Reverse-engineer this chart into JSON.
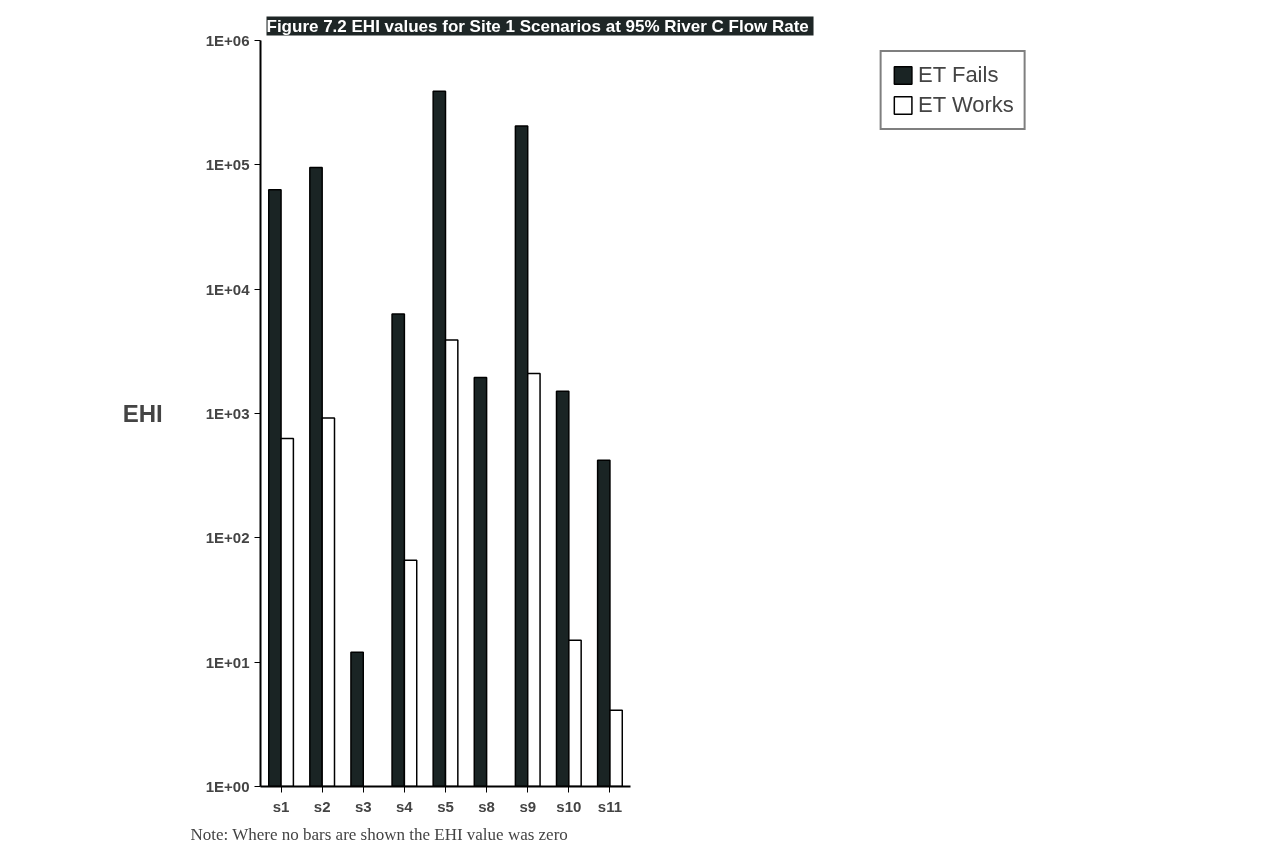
{
  "chart_data": {
    "type": "bar",
    "title": "Figure 7.2  EHI values for Site 1 Scenarios at 95% River C Flow Rate",
    "ylabel": "EHI",
    "categories": [
      "s1",
      "s2",
      "s3",
      "s4",
      "s5",
      "s8",
      "s9",
      "s10",
      "s11"
    ],
    "series": [
      {
        "name": "ET Fails",
        "color": "#1a2424",
        "values": [
          63000,
          95000,
          12,
          6300,
          390000,
          1950,
          205000,
          1510,
          420
        ]
      },
      {
        "name": "ET Works",
        "color": "#ffffff",
        "values": [
          630,
          920,
          null,
          66,
          3900,
          null,
          2100,
          15,
          4.1
        ]
      }
    ],
    "log": true,
    "ylim": [
      1,
      1000000
    ],
    "yticks": [
      {
        "value": 1,
        "label": "1E+00"
      },
      {
        "value": 10,
        "label": "1E+01"
      },
      {
        "value": 100,
        "label": "1E+02"
      },
      {
        "value": 1000,
        "label": "1E+03"
      },
      {
        "value": 10000,
        "label": "1E+04"
      },
      {
        "value": 100000,
        "label": "1E+05"
      },
      {
        "value": 1000000,
        "label": "1E+06"
      }
    ],
    "grid": false,
    "legend": "top right",
    "annotations": [
      "Note: Where no bars are shown the EHI value was zero"
    ]
  }
}
